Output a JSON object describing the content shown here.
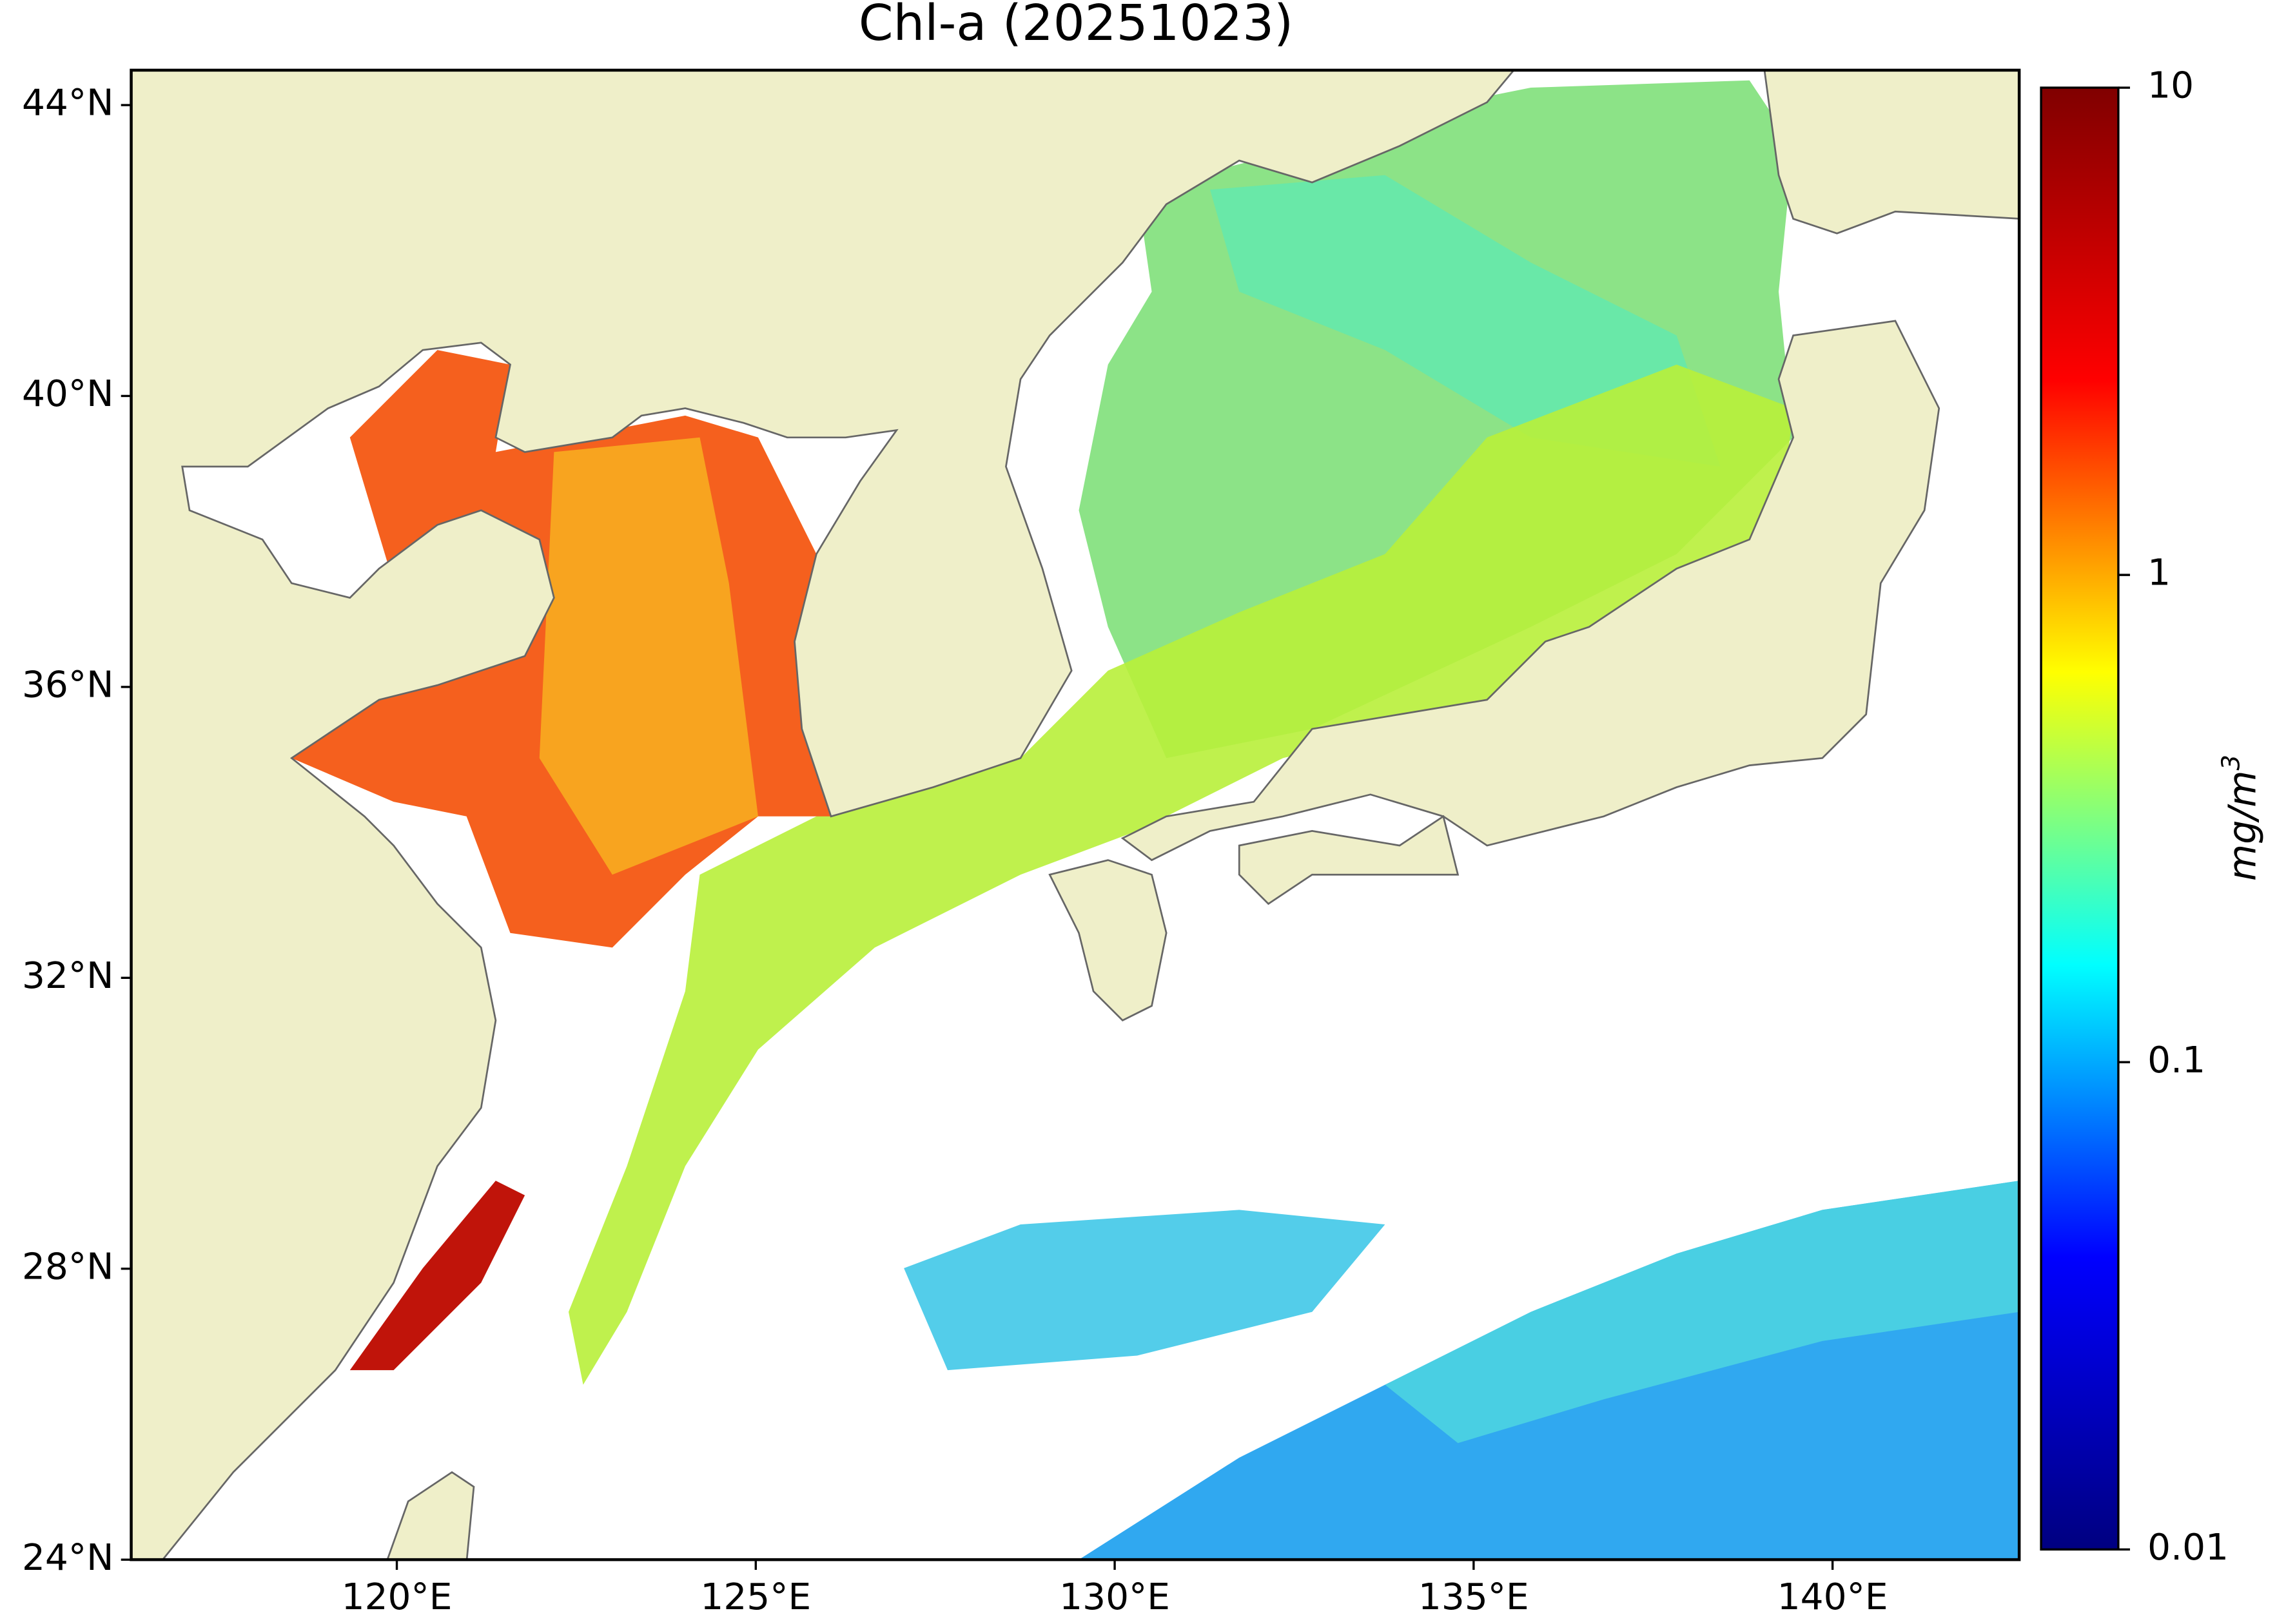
{
  "map": {
    "title": "Chl-a (20251023)",
    "xlim": [
      116.3,
      142.6
    ],
    "ylim": [
      24,
      44.48
    ],
    "xticks": [
      {
        "value": 120,
        "label": "120°E"
      },
      {
        "value": 125,
        "label": "125°E"
      },
      {
        "value": 130,
        "label": "130°E"
      },
      {
        "value": 135,
        "label": "135°E"
      },
      {
        "value": 140,
        "label": "140°E"
      }
    ],
    "yticks": [
      {
        "value": 24,
        "label": "24°N"
      },
      {
        "value": 28,
        "label": "28°N"
      },
      {
        "value": 32,
        "label": "32°N"
      },
      {
        "value": 36,
        "label": "36°N"
      },
      {
        "value": 40,
        "label": "40°N"
      },
      {
        "value": 44,
        "label": "44°N"
      }
    ],
    "colorbar": {
      "scale": "log",
      "lim": [
        0.01,
        10
      ],
      "ticks": [
        0.01,
        0.1,
        1,
        10
      ],
      "label": "mg/m",
      "label_exponent": "3",
      "colormap": [
        "#000080",
        "#0000ff",
        "#00ffff",
        "#ffff00",
        "#ff0000",
        "#800000"
      ]
    }
  }
}
